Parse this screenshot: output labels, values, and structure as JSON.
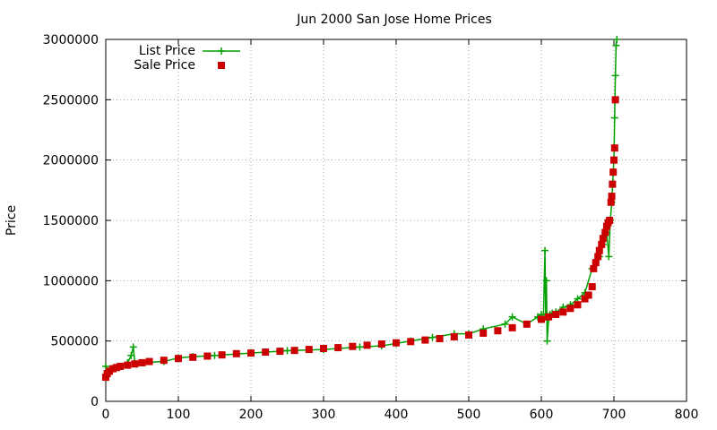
{
  "chart_data": {
    "type": "line",
    "title": "Jun 2000 San Jose Home Prices",
    "xlabel": "",
    "ylabel": "Price",
    "xlim": [
      0,
      800
    ],
    "ylim": [
      0,
      3000000
    ],
    "x_ticks": [
      "0",
      "100",
      "200",
      "300",
      "400",
      "500",
      "600",
      "700",
      "800"
    ],
    "y_ticks": [
      "0",
      "500000",
      "1000000",
      "1500000",
      "2000000",
      "2500000",
      "3000000"
    ],
    "grid": true,
    "legend_position": "top-left",
    "series": [
      {
        "name": "List Price",
        "marker": "plus",
        "color": "#00a000",
        "x": [
          0,
          5,
          10,
          20,
          30,
          35,
          38,
          40,
          42,
          50,
          80,
          100,
          120,
          150,
          200,
          250,
          300,
          350,
          380,
          400,
          420,
          450,
          480,
          500,
          520,
          550,
          560,
          580,
          595,
          600,
          603,
          605,
          606,
          607,
          608,
          610,
          612,
          615,
          620,
          630,
          640,
          650,
          660,
          670,
          675,
          680,
          685,
          690,
          693,
          695,
          697,
          698,
          699,
          700,
          701,
          702,
          703,
          704
        ],
        "y": [
          290000,
          230000,
          275000,
          290000,
          320000,
          380000,
          450000,
          320000,
          310000,
          320000,
          330000,
          360000,
          370000,
          380000,
          400000,
          420000,
          430000,
          450000,
          460000,
          480000,
          500000,
          530000,
          560000,
          560000,
          600000,
          640000,
          700000,
          640000,
          700000,
          720000,
          720000,
          1250000,
          700000,
          1000000,
          500000,
          680000,
          720000,
          730000,
          740000,
          780000,
          800000,
          850000,
          900000,
          1100000,
          1150000,
          1200000,
          1300000,
          1400000,
          1200000,
          1500000,
          1650000,
          1780000,
          1900000,
          2000000,
          2350000,
          2700000,
          2950000,
          3000000
        ]
      },
      {
        "name": "Sale Price",
        "marker": "square",
        "color": "#cc0000",
        "x": [
          0,
          2,
          5,
          10,
          15,
          20,
          30,
          40,
          50,
          60,
          80,
          100,
          120,
          140,
          160,
          180,
          200,
          220,
          240,
          260,
          280,
          300,
          320,
          340,
          360,
          380,
          400,
          420,
          440,
          460,
          480,
          500,
          520,
          540,
          560,
          580,
          600,
          610,
          620,
          630,
          640,
          650,
          660,
          665,
          670,
          672,
          675,
          678,
          680,
          683,
          685,
          688,
          690,
          692,
          694,
          696,
          697,
          698,
          699,
          700,
          701,
          702
        ],
        "y": [
          200000,
          230000,
          250000,
          270000,
          280000,
          290000,
          300000,
          310000,
          320000,
          330000,
          340000,
          355000,
          365000,
          375000,
          385000,
          395000,
          400000,
          408000,
          415000,
          422000,
          430000,
          438000,
          445000,
          455000,
          465000,
          475000,
          485000,
          495000,
          508000,
          520000,
          535000,
          550000,
          565000,
          585000,
          610000,
          640000,
          680000,
          700000,
          720000,
          740000,
          770000,
          800000,
          850000,
          880000,
          950000,
          1100000,
          1150000,
          1200000,
          1250000,
          1300000,
          1350000,
          1400000,
          1450000,
          1480000,
          1500000,
          1650000,
          1700000,
          1800000,
          1900000,
          2000000,
          2100000,
          2500000
        ]
      }
    ]
  }
}
